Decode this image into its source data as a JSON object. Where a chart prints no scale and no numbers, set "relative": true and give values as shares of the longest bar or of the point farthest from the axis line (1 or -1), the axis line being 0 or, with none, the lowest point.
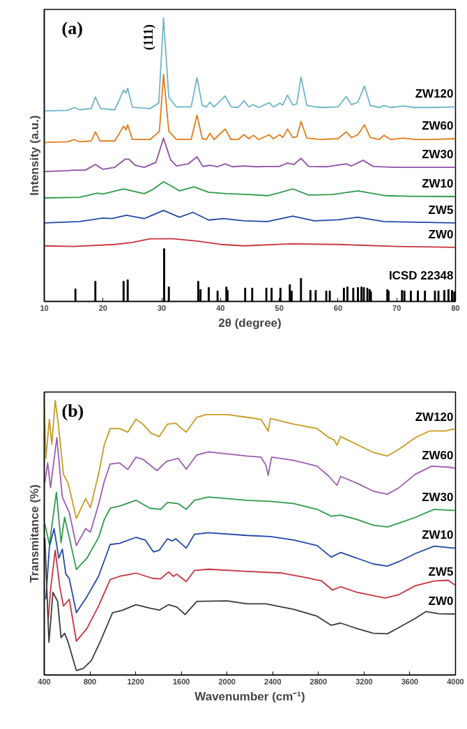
{
  "chart_data": [
    {
      "type": "line",
      "relative": true,
      "xlabel": "2θ (degree)",
      "ylabel": "Intensity (a.u.)",
      "xlim": [
        10,
        80
      ],
      "xticks": [
        10,
        20,
        30,
        40,
        50,
        60,
        70,
        80
      ],
      "annotations": [
        "(a)",
        "(111)"
      ],
      "series": [
        {
          "name": "ZW120",
          "color": "#6cb4c8",
          "x": [
            10,
            14,
            15.1,
            16,
            18,
            18.7,
            19.6,
            22,
            23.5,
            23.9,
            24.2,
            25,
            28,
            29.5,
            30.3,
            31.2,
            32.5,
            35,
            36.0,
            36.9,
            37.6,
            38.2,
            38.9,
            40.8,
            41.8,
            43,
            44,
            44.8,
            45.5,
            46.5,
            48.3,
            49,
            50.1,
            50.6,
            51.4,
            52.3,
            53,
            53.7,
            54.7,
            57,
            60,
            61.4,
            62.3,
            63.4,
            64.5,
            65.5,
            67,
            67.8,
            69,
            71.2,
            73,
            76,
            80
          ],
          "values": [
            0.672,
            0.674,
            0.684,
            0.676,
            0.68,
            0.721,
            0.68,
            0.676,
            0.745,
            0.735,
            0.752,
            0.685,
            0.68,
            0.7,
            1.0,
            0.72,
            0.686,
            0.686,
            0.789,
            0.691,
            0.686,
            0.703,
            0.686,
            0.725,
            0.686,
            0.684,
            0.708,
            0.686,
            0.694,
            0.684,
            0.701,
            0.686,
            0.699,
            0.693,
            0.728,
            0.693,
            0.697,
            0.792,
            0.691,
            0.684,
            0.686,
            0.723,
            0.694,
            0.703,
            0.76,
            0.691,
            0.684,
            0.691,
            0.684,
            0.689,
            0.684,
            0.684,
            0.686
          ]
        },
        {
          "name": "ZW60",
          "color": "#e07c17",
          "x": [
            10,
            14,
            15.1,
            16,
            18,
            18.7,
            19.5,
            22,
            23.5,
            23.9,
            24.2,
            25,
            28,
            29.6,
            30.3,
            31.2,
            32.5,
            35,
            36.0,
            36.9,
            37.6,
            38.2,
            38.9,
            40.8,
            41.8,
            43,
            44,
            44.8,
            45.6,
            46.5,
            48.3,
            49,
            50.1,
            50.6,
            51.4,
            52.3,
            53,
            53.7,
            54.7,
            57,
            60,
            61.4,
            62.3,
            63.4,
            64.5,
            65.5,
            67,
            67.8,
            69,
            71.2,
            73,
            76,
            80
          ],
          "values": [
            0.561,
            0.563,
            0.571,
            0.563,
            0.566,
            0.598,
            0.566,
            0.566,
            0.618,
            0.605,
            0.623,
            0.571,
            0.571,
            0.6,
            0.801,
            0.6,
            0.571,
            0.571,
            0.657,
            0.574,
            0.571,
            0.593,
            0.571,
            0.608,
            0.571,
            0.571,
            0.588,
            0.574,
            0.586,
            0.571,
            0.588,
            0.574,
            0.588,
            0.578,
            0.608,
            0.578,
            0.581,
            0.635,
            0.576,
            0.571,
            0.574,
            0.598,
            0.578,
            0.588,
            0.623,
            0.578,
            0.571,
            0.586,
            0.571,
            0.576,
            0.571,
            0.571,
            0.574
          ]
        },
        {
          "name": "ZW30",
          "color": "#8e4ea6",
          "x": [
            10,
            14,
            15,
            17,
            18.7,
            20,
            22,
            23.8,
            24.4,
            25.5,
            27,
            29,
            30.3,
            31.5,
            32.5,
            34.5,
            36,
            37,
            38.2,
            39.5,
            40.8,
            42,
            44,
            46,
            48,
            50,
            51.4,
            52.5,
            53.7,
            55,
            58,
            61.4,
            62.3,
            64.3,
            66,
            70,
            75,
            80
          ],
          "values": [
            0.458,
            0.461,
            0.463,
            0.463,
            0.483,
            0.466,
            0.473,
            0.502,
            0.502,
            0.48,
            0.473,
            0.49,
            0.576,
            0.5,
            0.478,
            0.485,
            0.51,
            0.476,
            0.48,
            0.475,
            0.485,
            0.475,
            0.478,
            0.475,
            0.476,
            0.476,
            0.488,
            0.483,
            0.505,
            0.476,
            0.475,
            0.485,
            0.478,
            0.498,
            0.476,
            0.473,
            0.473,
            0.473
          ]
        },
        {
          "name": "ZW10",
          "color": "#2b9a48",
          "x": [
            10,
            16,
            19,
            20,
            23.5,
            27,
            28.5,
            30.3,
            31.8,
            33,
            35.5,
            38,
            41,
            45,
            48,
            50,
            52.3,
            55,
            59,
            63.4,
            68.1,
            72,
            80
          ],
          "values": [
            0.365,
            0.367,
            0.382,
            0.379,
            0.397,
            0.38,
            0.395,
            0.422,
            0.405,
            0.39,
            0.404,
            0.385,
            0.38,
            0.377,
            0.373,
            0.383,
            0.397,
            0.375,
            0.377,
            0.39,
            0.373,
            0.371,
            0.37
          ]
        },
        {
          "name": "ZW5",
          "color": "#2247a6",
          "x": [
            10,
            16,
            20,
            21.5,
            24,
            27,
            28.5,
            30.3,
            33,
            35.3,
            38,
            40.5,
            44,
            48,
            52.3,
            56,
            60,
            63.3,
            67.8,
            72,
            80
          ],
          "values": [
            0.277,
            0.282,
            0.294,
            0.292,
            0.304,
            0.292,
            0.305,
            0.321,
            0.297,
            0.314,
            0.287,
            0.292,
            0.284,
            0.282,
            0.301,
            0.284,
            0.288,
            0.297,
            0.282,
            0.28,
            0.277
          ]
        },
        {
          "name": "ZW0",
          "color": "#c7323d",
          "x": [
            10,
            15,
            22,
            25,
            28,
            32,
            36,
            40,
            44,
            52,
            60,
            70,
            80
          ],
          "values": [
            0.196,
            0.194,
            0.201,
            0.208,
            0.221,
            0.221,
            0.213,
            0.201,
            0.196,
            0.203,
            0.201,
            0.194,
            0.191
          ]
        },
        {
          "name": "ICSD 22348",
          "type": "bar",
          "color": "#000000",
          "x": [
            15.3,
            18.7,
            23.5,
            24.2,
            30.4,
            31.2,
            36.2,
            36.6,
            38.0,
            39.5,
            41.0,
            41.2,
            44.2,
            45.4,
            47.8,
            48.7,
            50.2,
            51.8,
            52.1,
            53.7,
            55.3,
            56.2,
            58.0,
            58.6,
            61.0,
            61.6,
            62.6,
            63.4,
            64.0,
            64.4,
            65.0,
            65.4,
            65.6,
            68.4,
            68.6,
            70.9,
            71.3,
            72.4,
            73.6,
            74.8,
            76.5,
            77.1,
            78.1,
            78.8,
            79.4,
            79.8
          ],
          "values": [
            0.044,
            0.071,
            0.071,
            0.076,
            0.186,
            0.051,
            0.071,
            0.042,
            0.049,
            0.037,
            0.051,
            0.039,
            0.047,
            0.047,
            0.047,
            0.047,
            0.047,
            0.059,
            0.037,
            0.081,
            0.039,
            0.039,
            0.037,
            0.037,
            0.047,
            0.051,
            0.047,
            0.049,
            0.051,
            0.049,
            0.047,
            0.042,
            0.034,
            0.042,
            0.037,
            0.039,
            0.037,
            0.037,
            0.037,
            0.037,
            0.037,
            0.037,
            0.039,
            0.042,
            0.039,
            0.034
          ]
        }
      ]
    },
    {
      "type": "line",
      "relative": true,
      "xlabel": "Wavenumber (cm⁻¹)",
      "ylabel": "Transmitance (%)",
      "xlim": [
        400,
        4000
      ],
      "xticks": [
        400,
        800,
        1200,
        1600,
        2000,
        2400,
        2800,
        3200,
        3600,
        4000
      ],
      "annotations": [
        "(b)"
      ],
      "series": [
        {
          "name": "ZW120",
          "color": "#c89a1e",
          "x": [
            400,
            414,
            445,
            466,
            496,
            523,
            568,
            609,
            681,
            762,
            804,
            875,
            926,
            977,
            1059,
            1131,
            1203,
            1264,
            1336,
            1407,
            1479,
            1551,
            1592,
            1643,
            1735,
            1817,
            2001,
            2175,
            2298,
            2360,
            2380,
            2585,
            2789,
            2892,
            2937,
            2963,
            2994,
            3138,
            3281,
            3404,
            3506,
            3649,
            3772,
            3915,
            3977,
            4000
          ],
          "values": [
            0.995,
            0.789,
            0.93,
            0.839,
            1.0,
            0.913,
            0.731,
            0.698,
            0.57,
            0.642,
            0.609,
            0.731,
            0.839,
            0.897,
            0.897,
            0.884,
            0.931,
            0.913,
            0.88,
            0.868,
            0.913,
            0.917,
            0.901,
            0.884,
            0.938,
            0.948,
            0.948,
            0.938,
            0.93,
            0.888,
            0.934,
            0.913,
            0.897,
            0.864,
            0.856,
            0.836,
            0.868,
            0.839,
            0.81,
            0.797,
            0.822,
            0.864,
            0.888,
            0.888,
            0.895,
            0.892
          ]
        },
        {
          "name": "ZW60",
          "color": "#9a5bb0",
          "x": [
            405,
            430,
            455,
            510,
            558,
            619,
            681,
            762,
            804,
            875,
            926,
            977,
            1059,
            1131,
            1203,
            1264,
            1387,
            1469,
            1572,
            1643,
            1735,
            1837,
            2175,
            2298,
            2340,
            2360,
            2390,
            2585,
            2789,
            2892,
            2963,
            2994,
            3138,
            3281,
            3404,
            3506,
            3649,
            3792,
            3956,
            4000
          ],
          "values": [
            0.7,
            0.772,
            0.682,
            0.864,
            0.648,
            0.591,
            0.471,
            0.533,
            0.52,
            0.62,
            0.706,
            0.768,
            0.772,
            0.748,
            0.793,
            0.785,
            0.744,
            0.777,
            0.789,
            0.749,
            0.801,
            0.812,
            0.797,
            0.793,
            0.764,
            0.727,
            0.793,
            0.781,
            0.76,
            0.723,
            0.69,
            0.723,
            0.698,
            0.669,
            0.658,
            0.682,
            0.731,
            0.76,
            0.756,
            0.752
          ]
        },
        {
          "name": "ZW30",
          "color": "#2e9a4a",
          "x": [
            405,
            445,
            506,
            547,
            578,
            619,
            681,
            773,
            875,
            926,
            977,
            1059,
            1203,
            1326,
            1418,
            1479,
            1571,
            1643,
            1714,
            1837,
            2175,
            2380,
            2585,
            2789,
            2912,
            2994,
            3138,
            3281,
            3404,
            3506,
            3649,
            3813,
            3977,
            4000
          ],
          "values": [
            0.55,
            0.475,
            0.665,
            0.482,
            0.574,
            0.5,
            0.384,
            0.425,
            0.5,
            0.566,
            0.607,
            0.615,
            0.636,
            0.607,
            0.603,
            0.628,
            0.624,
            0.603,
            0.636,
            0.648,
            0.636,
            0.632,
            0.624,
            0.603,
            0.578,
            0.582,
            0.566,
            0.545,
            0.539,
            0.553,
            0.574,
            0.603,
            0.599,
            0.599
          ]
        },
        {
          "name": "ZW10",
          "color": "#2247a6",
          "x": [
            414,
            445,
            486,
            527,
            558,
            589,
            619,
            681,
            773,
            875,
            977,
            1059,
            1203,
            1285,
            1356,
            1407,
            1479,
            1520,
            1551,
            1643,
            1714,
            1837,
            2175,
            2380,
            2585,
            2789,
            2912,
            2994,
            3138,
            3281,
            3404,
            3506,
            3649,
            3813,
            3977,
            4000
          ],
          "values": [
            0.276,
            0.467,
            0.533,
            0.425,
            0.458,
            0.367,
            0.351,
            0.227,
            0.285,
            0.359,
            0.475,
            0.479,
            0.501,
            0.491,
            0.448,
            0.454,
            0.496,
            0.488,
            0.496,
            0.462,
            0.512,
            0.518,
            0.508,
            0.504,
            0.491,
            0.471,
            0.429,
            0.446,
            0.425,
            0.404,
            0.396,
            0.413,
            0.442,
            0.469,
            0.462,
            0.462
          ]
        },
        {
          "name": "ZW5",
          "color": "#c7323d",
          "x": [
            435,
            457,
            496,
            537,
            568,
            619,
            681,
            773,
            875,
            977,
            1059,
            1203,
            1346,
            1418,
            1489,
            1530,
            1561,
            1643,
            1714,
            1837,
            2175,
            2482,
            2687,
            2830,
            2923,
            2994,
            3138,
            3281,
            3384,
            3506,
            3649,
            3813,
            3936,
            3993
          ],
          "values": [
            0.202,
            0.318,
            0.454,
            0.318,
            0.251,
            0.276,
            0.123,
            0.169,
            0.251,
            0.347,
            0.359,
            0.371,
            0.352,
            0.35,
            0.375,
            0.359,
            0.367,
            0.34,
            0.38,
            0.385,
            0.377,
            0.371,
            0.355,
            0.342,
            0.309,
            0.321,
            0.301,
            0.289,
            0.28,
            0.293,
            0.325,
            0.342,
            0.345,
            0.328
          ]
        },
        {
          "name": "ZW0",
          "color": "#3a3a3a",
          "x": [
            405,
            441,
            457,
            476,
            517,
            547,
            578,
            609,
            681,
            742,
            813,
            896,
            998,
            1080,
            1203,
            1326,
            1407,
            1489,
            1561,
            1633,
            1735,
            2001,
            2175,
            2339,
            2585,
            2789,
            2912,
            2994,
            3138,
            3281,
            3404,
            3506,
            3649,
            3741,
            3854,
            3993
          ],
          "values": [
            0.5,
            0.119,
            0.202,
            0.301,
            0.268,
            0.136,
            0.152,
            0.119,
            0.016,
            0.024,
            0.053,
            0.127,
            0.227,
            0.235,
            0.256,
            0.243,
            0.236,
            0.256,
            0.247,
            0.22,
            0.268,
            0.27,
            0.259,
            0.259,
            0.239,
            0.214,
            0.181,
            0.189,
            0.169,
            0.152,
            0.15,
            0.173,
            0.206,
            0.231,
            0.223,
            0.222
          ]
        }
      ]
    }
  ]
}
